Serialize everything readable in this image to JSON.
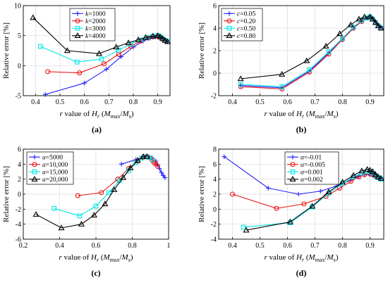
{
  "colors": {
    "blue": "#1f1fff",
    "red": "#e8110f",
    "cyan": "#00e6e6",
    "black": "#000000"
  },
  "chart_data": [
    {
      "type": "line",
      "panel_label": "(a)",
      "ylabel": "Relative error [%]",
      "xlabel": "r value of Hr (Mmax/Ms)",
      "xlim": [
        0.35,
        0.95
      ],
      "ylim": [
        -5,
        10
      ],
      "xticks": [
        0.4,
        0.5,
        0.6,
        0.7,
        0.8,
        0.9
      ],
      "xtick_labels": [
        "0.4",
        "0.5",
        "0.6",
        "0.7",
        "0.8",
        "0.9"
      ],
      "yticks": [
        -5,
        0,
        5,
        10
      ],
      "ytick_labels": [
        "-5",
        "0",
        "5",
        "10"
      ],
      "grid": true,
      "legend_position": "top-center",
      "legend_var": "k",
      "series": [
        {
          "name": "k=1000",
          "legend_value": "=1000",
          "color": "blue",
          "marker": "plus",
          "x": [
            0.44,
            0.6,
            0.69,
            0.75,
            0.8,
            0.84,
            0.87,
            0.89,
            0.9,
            0.91,
            0.92,
            0.93,
            0.94
          ],
          "y": [
            -4.8,
            -2.9,
            -0.6,
            1.5,
            3.1,
            4.1,
            4.6,
            4.8,
            4.9,
            4.7,
            4.4,
            4.2,
            4.0
          ]
        },
        {
          "name": "k=2000",
          "legend_value": "=2000",
          "color": "red",
          "marker": "circle",
          "x": [
            0.45,
            0.58,
            0.68,
            0.74,
            0.79,
            0.83,
            0.86,
            0.88,
            0.9,
            0.91,
            0.92,
            0.93,
            0.94
          ],
          "y": [
            -1.0,
            -1.2,
            0.3,
            1.9,
            3.2,
            4.1,
            4.6,
            4.8,
            4.9,
            4.7,
            4.4,
            4.2,
            4.0
          ]
        },
        {
          "name": "k=3000",
          "legend_value": "=3000",
          "color": "cyan",
          "marker": "square",
          "x": [
            0.42,
            0.57,
            0.67,
            0.74,
            0.79,
            0.83,
            0.86,
            0.88,
            0.9,
            0.91,
            0.92,
            0.93,
            0.94
          ],
          "y": [
            3.2,
            0.6,
            1.1,
            2.6,
            3.6,
            4.3,
            4.7,
            4.9,
            5.0,
            4.8,
            4.5,
            4.2,
            4.0
          ]
        },
        {
          "name": "k=4000",
          "legend_value": "=4000",
          "color": "black",
          "marker": "triangle",
          "x": [
            0.39,
            0.53,
            0.66,
            0.73,
            0.78,
            0.82,
            0.85,
            0.88,
            0.9,
            0.91,
            0.92,
            0.93,
            0.94
          ],
          "y": [
            8.0,
            2.5,
            2.0,
            3.1,
            3.8,
            4.3,
            4.7,
            4.9,
            5.0,
            4.8,
            4.5,
            4.2,
            4.0
          ]
        }
      ]
    },
    {
      "type": "line",
      "panel_label": "(b)",
      "ylabel": "Relative error [%]",
      "xlabel": "r value of Hr (Mmax/Ms)",
      "xlim": [
        0.35,
        0.95
      ],
      "ylim": [
        -2,
        6
      ],
      "xticks": [
        0.4,
        0.5,
        0.6,
        0.7,
        0.8,
        0.9
      ],
      "xtick_labels": [
        "0.4",
        "0.5",
        "0.6",
        "0.7",
        "0.8",
        "0.9"
      ],
      "yticks": [
        -2,
        0,
        2,
        4,
        6
      ],
      "ytick_labels": [
        "-2",
        "0",
        "2",
        "4",
        "6"
      ],
      "grid": true,
      "legend_position": "top-left",
      "legend_var": "c",
      "series": [
        {
          "name": "c=0.05",
          "legend_value": "=0.05",
          "color": "blue",
          "marker": "plus",
          "x": [
            0.43,
            0.58,
            0.68,
            0.75,
            0.8,
            0.84,
            0.87,
            0.89,
            0.9,
            0.91,
            0.92,
            0.93,
            0.94
          ],
          "y": [
            -1.1,
            -1.3,
            0.2,
            1.8,
            3.0,
            4.0,
            4.6,
            4.9,
            5.0,
            4.8,
            4.5,
            4.2,
            4.0
          ]
        },
        {
          "name": "c=0.20",
          "legend_value": "=0.20",
          "color": "red",
          "marker": "circle",
          "x": [
            0.43,
            0.58,
            0.68,
            0.75,
            0.8,
            0.84,
            0.87,
            0.89,
            0.9,
            0.91,
            0.92,
            0.93,
            0.94
          ],
          "y": [
            -1.2,
            -1.4,
            0.1,
            1.7,
            3.0,
            4.0,
            4.6,
            4.9,
            5.0,
            4.8,
            4.5,
            4.2,
            4.0
          ]
        },
        {
          "name": "c=0.50",
          "legend_value": "=0.50",
          "color": "cyan",
          "marker": "square",
          "x": [
            0.43,
            0.58,
            0.68,
            0.75,
            0.8,
            0.84,
            0.87,
            0.89,
            0.9,
            0.91,
            0.92,
            0.93,
            0.94
          ],
          "y": [
            -1.0,
            -1.2,
            0.3,
            1.9,
            3.1,
            4.1,
            4.7,
            4.9,
            5.0,
            4.8,
            4.5,
            4.2,
            4.0
          ]
        },
        {
          "name": "c=0.80",
          "legend_value": "=0.80",
          "color": "black",
          "marker": "triangle",
          "x": [
            0.43,
            0.58,
            0.67,
            0.74,
            0.79,
            0.83,
            0.86,
            0.88,
            0.9,
            0.91,
            0.92,
            0.93,
            0.94
          ],
          "y": [
            -0.5,
            -0.1,
            1.1,
            2.4,
            3.5,
            4.3,
            4.8,
            5.0,
            5.0,
            4.8,
            4.5,
            4.2,
            4.0
          ]
        }
      ]
    },
    {
      "type": "line",
      "panel_label": "(c)",
      "ylabel": "Relative error [%]",
      "xlabel": "r value of Hr (Mmax/Ms)",
      "xlim": [
        0.2,
        1.0
      ],
      "ylim": [
        -6,
        6
      ],
      "xticks": [
        0.2,
        0.4,
        0.6,
        0.8,
        1.0
      ],
      "xtick_labels": [
        "0.2",
        "0.4",
        "0.6",
        "0.8",
        "1"
      ],
      "yticks": [
        -6,
        -4,
        -2,
        0,
        2,
        4,
        6
      ],
      "ytick_labels": [
        "-6",
        "-4",
        "-2",
        "0",
        "2",
        "4",
        "6"
      ],
      "grid": true,
      "legend_position": "top-left",
      "legend_var": "a",
      "series": [
        {
          "name": "a=5000",
          "legend_value": "=5000",
          "color": "blue",
          "marker": "plus",
          "x": [
            0.74,
            0.82,
            0.86,
            0.89,
            0.91,
            0.93,
            0.94,
            0.95,
            0.96,
            0.97,
            0.98
          ],
          "y": [
            4.0,
            4.6,
            4.9,
            5.0,
            4.8,
            4.4,
            3.9,
            3.4,
            2.9,
            2.5,
            2.2
          ]
        },
        {
          "name": "a=10,000",
          "legend_value": "=10,000",
          "color": "red",
          "marker": "circle",
          "x": [
            0.5,
            0.63,
            0.72,
            0.78,
            0.83,
            0.86,
            0.88,
            0.9,
            0.91,
            0.92,
            0.93,
            0.94
          ],
          "y": [
            -0.2,
            0.2,
            2.0,
            3.4,
            4.4,
            4.9,
            5.0,
            4.8,
            4.5,
            4.2,
            4.0,
            3.7
          ]
        },
        {
          "name": "a=15,000",
          "legend_value": "=15,000",
          "color": "cyan",
          "marker": "square",
          "x": [
            0.37,
            0.51,
            0.6,
            0.67,
            0.73,
            0.78,
            0.82,
            0.85,
            0.87,
            0.89,
            0.91
          ],
          "y": [
            -1.9,
            -2.9,
            -1.6,
            0.2,
            1.8,
            3.1,
            4.2,
            4.8,
            5.0,
            4.9,
            4.6
          ]
        },
        {
          "name": "a=20,000",
          "legend_value": "=20,000",
          "color": "black",
          "marker": "triangle",
          "x": [
            0.27,
            0.41,
            0.52,
            0.59,
            0.65,
            0.7,
            0.75,
            0.79,
            0.83,
            0.86,
            0.88
          ],
          "y": [
            -2.7,
            -4.5,
            -4.0,
            -2.8,
            -1.3,
            0.6,
            2.2,
            3.5,
            4.5,
            5.0,
            5.0
          ]
        }
      ]
    },
    {
      "type": "line",
      "panel_label": "(d)",
      "ylabel": "Relative error [%]",
      "xlabel": "r value of Hr (Mmax/Ms)",
      "xlim": [
        0.35,
        0.95
      ],
      "ylim": [
        -4,
        8
      ],
      "xticks": [
        0.4,
        0.5,
        0.6,
        0.7,
        0.8,
        0.9
      ],
      "xtick_labels": [
        "0.4",
        "0.5",
        "0.6",
        "0.7",
        "0.8",
        "0.9"
      ],
      "yticks": [
        -4,
        -2,
        0,
        2,
        4,
        6,
        8
      ],
      "ytick_labels": [
        "-4",
        "-2",
        "0",
        "2",
        "4",
        "6",
        "8"
      ],
      "grid": true,
      "legend_position": "top-right",
      "legend_var": "α",
      "series": [
        {
          "name": "α=-0.01",
          "legend_value": "=-0.01",
          "color": "blue",
          "marker": "plus",
          "x": [
            0.37,
            0.53,
            0.64,
            0.72,
            0.78,
            0.83,
            0.86,
            0.88,
            0.9,
            0.91,
            0.92,
            0.93,
            0.94
          ],
          "y": [
            7.0,
            2.8,
            2.0,
            2.4,
            3.1,
            3.9,
            4.4,
            4.6,
            4.6,
            4.5,
            4.3,
            4.2,
            4.1
          ]
        },
        {
          "name": "α=-0.005",
          "legend_value": "=-0.005",
          "color": "red",
          "marker": "circle",
          "x": [
            0.4,
            0.56,
            0.66,
            0.74,
            0.79,
            0.83,
            0.86,
            0.88,
            0.9,
            0.91,
            0.92,
            0.93,
            0.94
          ],
          "y": [
            2.0,
            0.1,
            0.7,
            1.7,
            2.8,
            3.7,
            4.3,
            4.6,
            4.7,
            4.6,
            4.4,
            4.2,
            4.0
          ]
        },
        {
          "name": "α=0.001",
          "legend_value": "=0.001",
          "color": "cyan",
          "marker": "square",
          "x": [
            0.44,
            0.61,
            0.69,
            0.75,
            0.8,
            0.84,
            0.87,
            0.89,
            0.9,
            0.91,
            0.92,
            0.93,
            0.94
          ],
          "y": [
            -2.4,
            -1.8,
            0.3,
            2.1,
            3.4,
            4.3,
            4.8,
            5.0,
            5.0,
            4.8,
            4.5,
            4.2,
            4.0
          ]
        },
        {
          "name": "α=0.002",
          "legend_value": "=0.002",
          "color": "black",
          "marker": "triangle",
          "x": [
            0.45,
            0.61,
            0.69,
            0.75,
            0.8,
            0.84,
            0.87,
            0.89,
            0.9,
            0.91,
            0.92,
            0.93,
            0.94
          ],
          "y": [
            -2.8,
            -1.7,
            0.4,
            2.3,
            3.6,
            4.5,
            5.1,
            5.3,
            5.2,
            5.0,
            4.6,
            4.3,
            4.1
          ]
        }
      ]
    }
  ]
}
